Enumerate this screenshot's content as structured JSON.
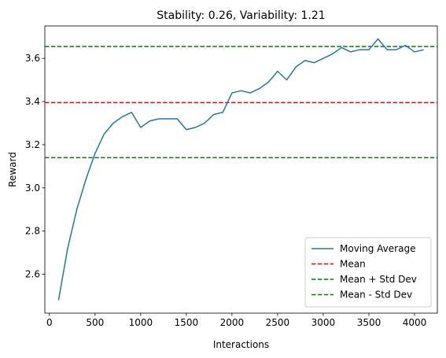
{
  "chart_data": {
    "type": "line",
    "title": "Stability: 0.26, Variability: 1.21",
    "xlabel": "Interactions",
    "ylabel": "Reward",
    "xlim": [
      -50,
      4250
    ],
    "ylim": [
      2.42,
      3.75
    ],
    "xticks": [
      0,
      500,
      1000,
      1500,
      2000,
      2500,
      3000,
      3500,
      4000
    ],
    "yticks": [
      2.6,
      2.8,
      3.0,
      3.2,
      3.4,
      3.6
    ],
    "ytick_labels": [
      "2.6",
      "2.8",
      "3.0",
      "3.2",
      "3.4",
      "3.6"
    ],
    "grid": false,
    "legend_position": "lower-right",
    "series": [
      {
        "name": "Moving Average",
        "color": "#1f77b4",
        "style": "solid",
        "x": [
          100,
          200,
          300,
          400,
          500,
          600,
          700,
          800,
          900,
          1000,
          1100,
          1200,
          1300,
          1400,
          1500,
          1600,
          1700,
          1800,
          1900,
          2000,
          2100,
          2200,
          2300,
          2400,
          2500,
          2600,
          2700,
          2800,
          2900,
          3000,
          3100,
          3200,
          3300,
          3400,
          3500,
          3600,
          3700,
          3800,
          3900,
          4000,
          4100
        ],
        "y": [
          2.48,
          2.72,
          2.9,
          3.04,
          3.16,
          3.25,
          3.3,
          3.33,
          3.35,
          3.28,
          3.31,
          3.32,
          3.32,
          3.32,
          3.27,
          3.28,
          3.3,
          3.34,
          3.35,
          3.44,
          3.45,
          3.44,
          3.46,
          3.49,
          3.54,
          3.5,
          3.56,
          3.59,
          3.58,
          3.6,
          3.62,
          3.65,
          3.63,
          3.64,
          3.64,
          3.69,
          3.64,
          3.64,
          3.66,
          3.63,
          3.64
        ]
      }
    ],
    "reference_lines": [
      {
        "name": "Mean",
        "value": 3.395,
        "color": "#ff0000",
        "style": "dashed"
      },
      {
        "name": "Mean + Std Dev",
        "value": 3.655,
        "color": "#008000",
        "style": "dashed"
      },
      {
        "name": "Mean - Std Dev",
        "value": 3.14,
        "color": "#008000",
        "style": "dashed"
      }
    ]
  }
}
